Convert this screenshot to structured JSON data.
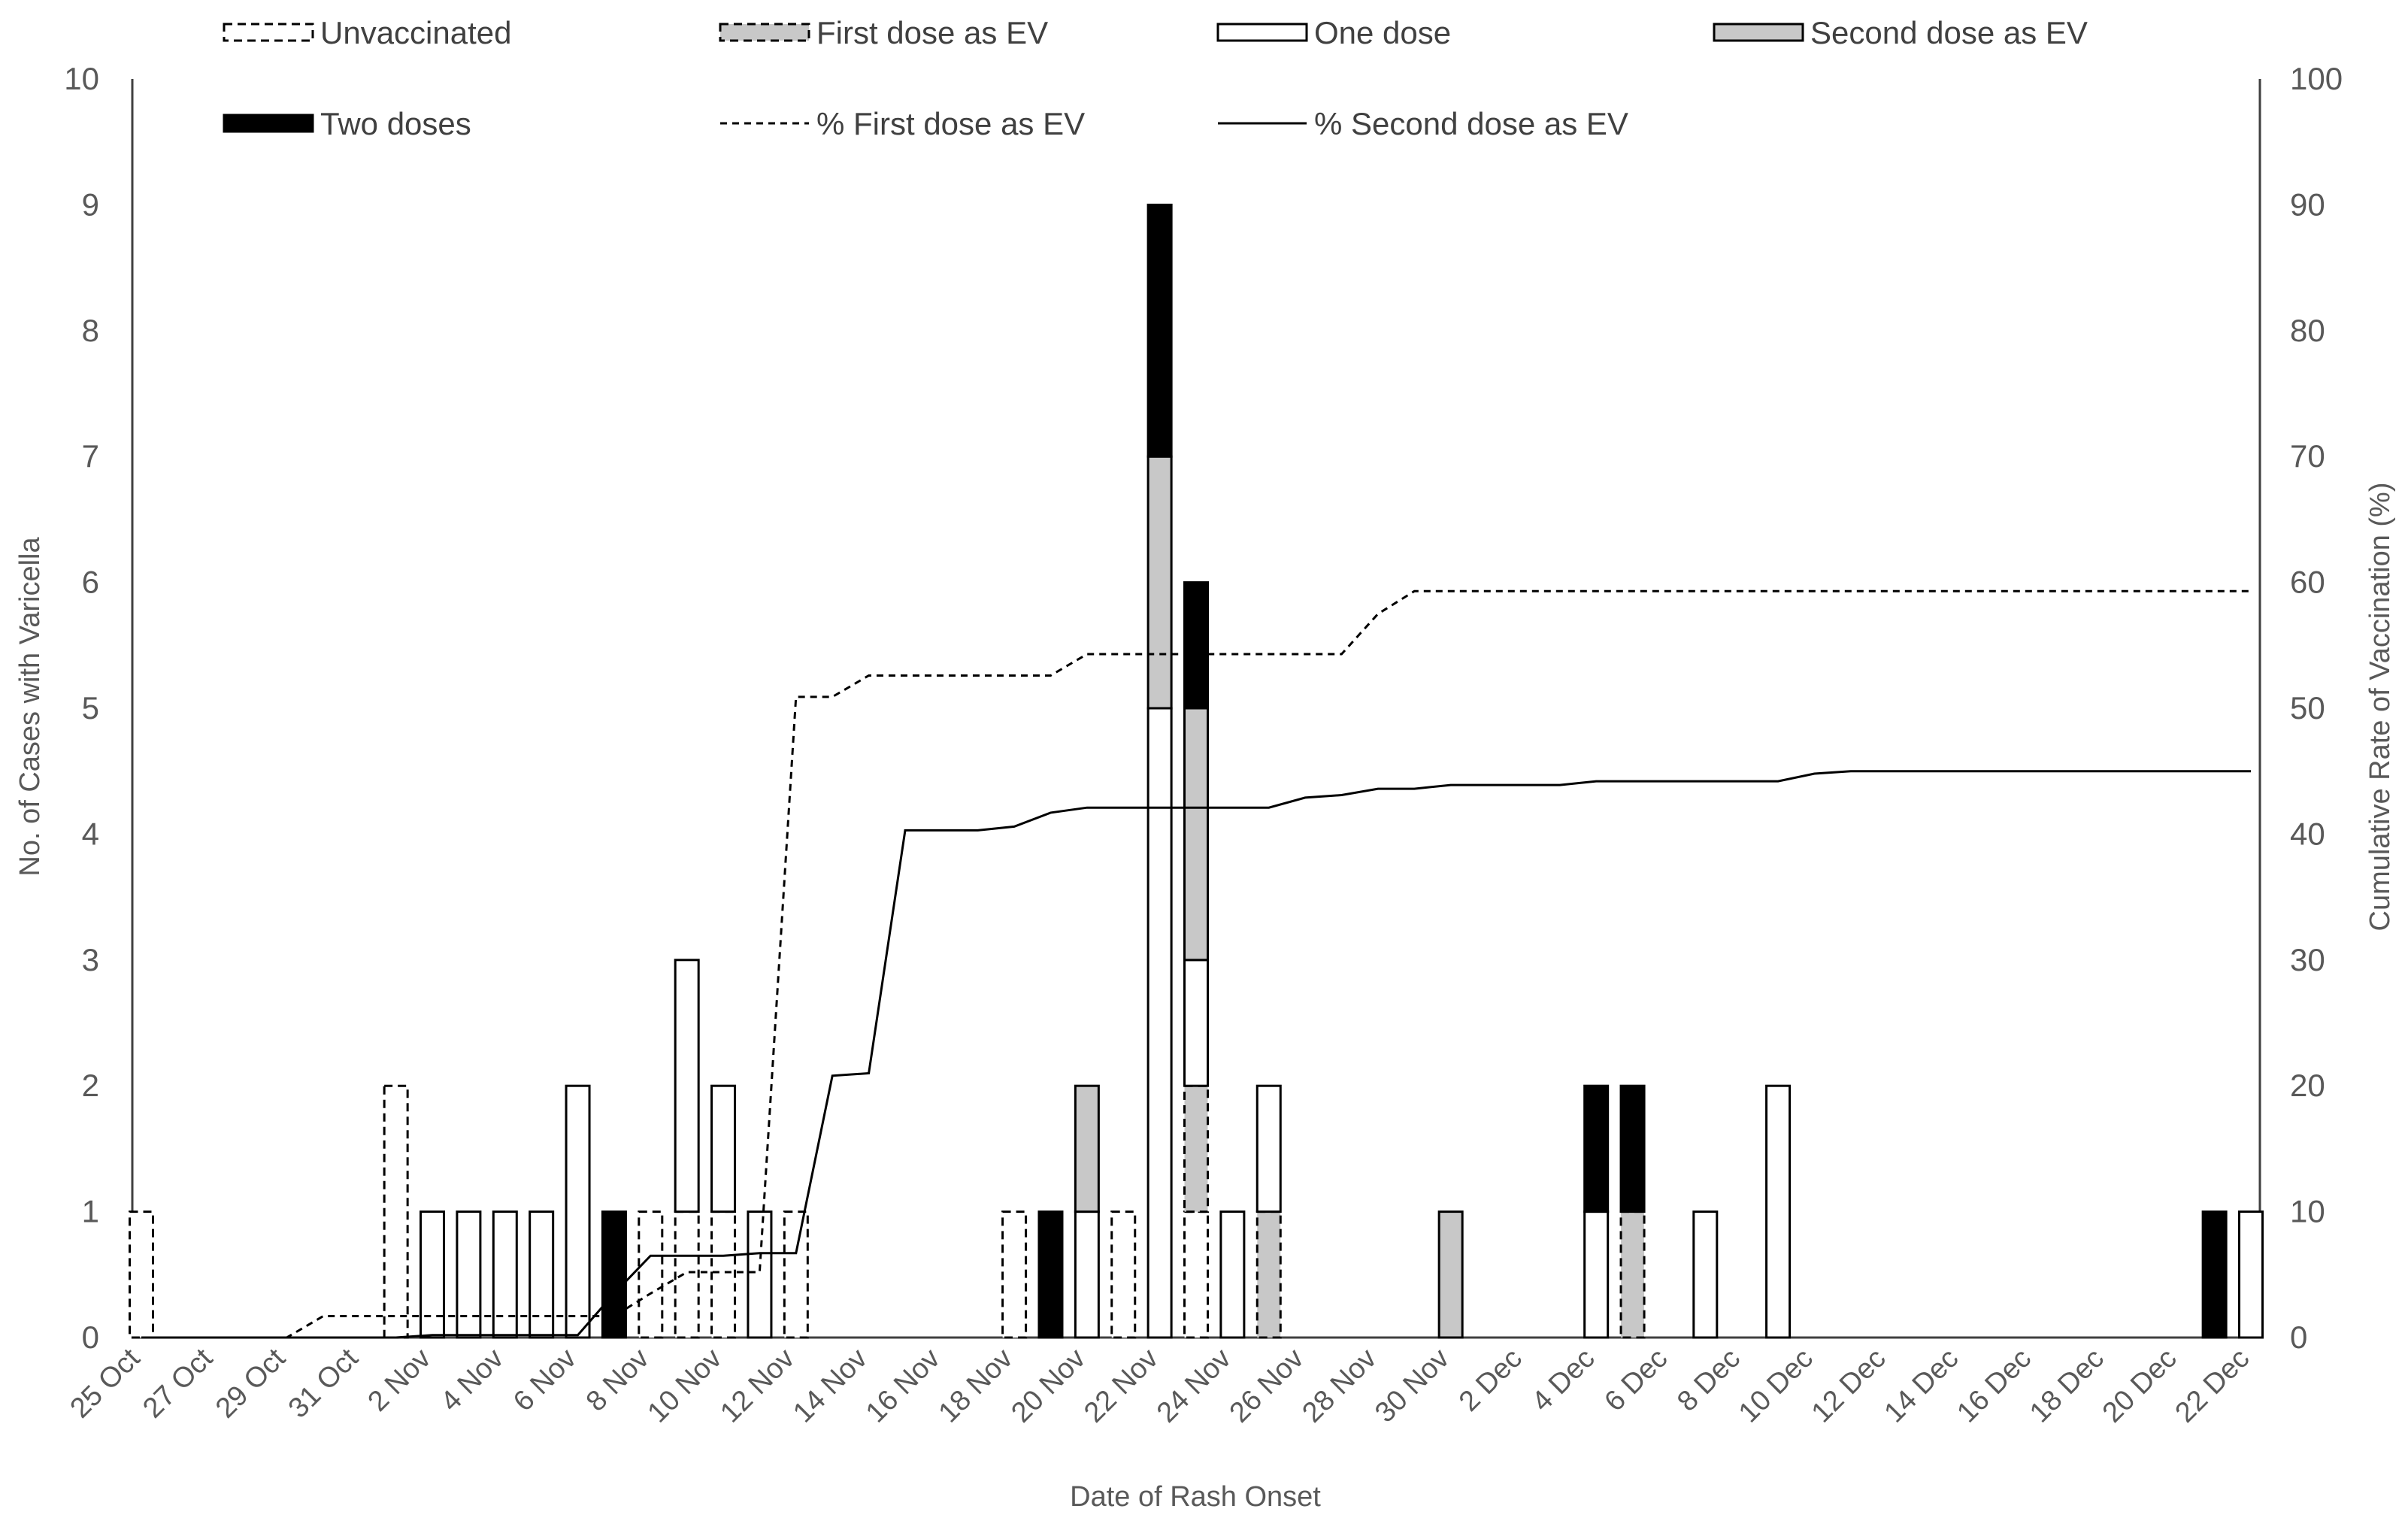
{
  "chart_data": {
    "type": "bar",
    "subtype": "stacked-bar-with-lines",
    "title": "",
    "xlabel": "Date of Rash Onset",
    "ylabel": "No. of Cases with Varicella",
    "y2label": "Cumulative Rate of Vaccination (%)",
    "ylim": [
      0,
      10
    ],
    "y2lim": [
      0,
      100
    ],
    "yticks": [
      "0",
      "1",
      "2",
      "3",
      "4",
      "5",
      "6",
      "7",
      "8",
      "9",
      "10"
    ],
    "y2ticks": [
      "0",
      "10",
      "20",
      "30",
      "40",
      "50",
      "60",
      "70",
      "80",
      "90",
      "100"
    ],
    "grid": false,
    "legend_position": "top",
    "x_tick_labels": [
      "25 Oct",
      "27 Oct",
      "29 Oct",
      "31 Oct",
      "2 Nov",
      "4 Nov",
      "6 Nov",
      "8 Nov",
      "10 Nov",
      "12 Nov",
      "14 Nov",
      "16 Nov",
      "18 Nov",
      "20 Nov",
      "22 Nov",
      "24 Nov",
      "26 Nov",
      "28 Nov",
      "30 Nov",
      "2 Dec",
      "4 Dec",
      "6 Dec",
      "8 Dec",
      "10 Dec",
      "12 Dec",
      "14 Dec",
      "16 Dec",
      "18 Dec",
      "20 Dec",
      "22 Dec"
    ],
    "categories": [
      "25 Oct",
      "26 Oct",
      "27 Oct",
      "28 Oct",
      "29 Oct",
      "30 Oct",
      "31 Oct",
      "1 Nov",
      "2 Nov",
      "3 Nov",
      "4 Nov",
      "5 Nov",
      "6 Nov",
      "7 Nov",
      "8 Nov",
      "9 Nov",
      "10 Nov",
      "11 Nov",
      "12 Nov",
      "13 Nov",
      "14 Nov",
      "15 Nov",
      "16 Nov",
      "17 Nov",
      "18 Nov",
      "19 Nov",
      "20 Nov",
      "21 Nov",
      "22 Nov",
      "23 Nov",
      "24 Nov",
      "25 Nov",
      "26 Nov",
      "27 Nov",
      "28 Nov",
      "29 Nov",
      "30 Nov",
      "1 Dec",
      "2 Dec",
      "3 Dec",
      "4 Dec",
      "5 Dec",
      "6 Dec",
      "7 Dec",
      "8 Dec",
      "9 Dec",
      "10 Dec",
      "11 Dec",
      "12 Dec",
      "13 Dec",
      "14 Dec",
      "15 Dec",
      "16 Dec",
      "17 Dec",
      "18 Dec",
      "19 Dec",
      "20 Dec",
      "21 Dec",
      "22 Dec"
    ],
    "series": [
      {
        "name": "Unvaccinated",
        "kind": "bar",
        "style": "dashed-outline",
        "values": [
          1,
          0,
          0,
          0,
          0,
          0,
          0,
          2,
          0,
          0,
          0,
          0,
          0,
          0,
          1,
          1,
          1,
          0,
          1,
          0,
          0,
          0,
          0,
          0,
          1,
          0,
          0,
          1,
          0,
          1,
          0,
          0,
          0,
          0,
          0,
          0,
          0,
          0,
          0,
          0,
          0,
          0,
          0,
          0,
          0,
          0,
          0,
          0,
          0,
          0,
          0,
          0,
          0,
          0,
          0,
          0,
          0,
          0,
          0
        ]
      },
      {
        "name": "First dose as EV",
        "kind": "bar",
        "style": "dashed-grey",
        "values": [
          0,
          0,
          0,
          0,
          0,
          0,
          0,
          0,
          0,
          0,
          0,
          0,
          0,
          0,
          0,
          0,
          0,
          0,
          0,
          0,
          0,
          0,
          0,
          0,
          0,
          0,
          0,
          0,
          0,
          1,
          0,
          1,
          0,
          0,
          0,
          0,
          0,
          0,
          0,
          0,
          0,
          1,
          0,
          0,
          0,
          0,
          0,
          0,
          0,
          0,
          0,
          0,
          0,
          0,
          0,
          0,
          0,
          0,
          0
        ]
      },
      {
        "name": "One dose",
        "kind": "bar",
        "style": "white",
        "values": [
          0,
          0,
          0,
          0,
          0,
          0,
          0,
          0,
          1,
          1,
          1,
          1,
          2,
          0,
          0,
          2,
          1,
          1,
          0,
          0,
          0,
          0,
          0,
          0,
          0,
          0,
          1,
          0,
          5,
          1,
          1,
          1,
          0,
          0,
          0,
          0,
          0,
          0,
          0,
          0,
          1,
          0,
          0,
          1,
          0,
          2,
          0,
          0,
          0,
          0,
          0,
          0,
          0,
          0,
          0,
          0,
          0,
          0,
          1
        ]
      },
      {
        "name": "Second dose as EV",
        "kind": "bar",
        "style": "grey",
        "values": [
          0,
          0,
          0,
          0,
          0,
          0,
          0,
          0,
          0,
          0,
          0,
          0,
          0,
          0,
          0,
          0,
          0,
          0,
          0,
          0,
          0,
          0,
          0,
          0,
          0,
          0,
          1,
          0,
          2,
          2,
          0,
          0,
          0,
          0,
          0,
          0,
          1,
          0,
          0,
          0,
          0,
          0,
          0,
          0,
          0,
          0,
          0,
          0,
          0,
          0,
          0,
          0,
          0,
          0,
          0,
          0,
          0,
          0,
          0
        ]
      },
      {
        "name": "Two doses",
        "kind": "bar",
        "style": "black",
        "values": [
          0,
          0,
          0,
          0,
          0,
          0,
          0,
          0,
          0,
          0,
          0,
          0,
          0,
          1,
          0,
          0,
          0,
          0,
          0,
          0,
          0,
          0,
          0,
          0,
          0,
          1,
          0,
          0,
          2,
          1,
          0,
          0,
          0,
          0,
          0,
          0,
          0,
          0,
          0,
          0,
          1,
          1,
          0,
          0,
          0,
          0,
          0,
          0,
          0,
          0,
          0,
          0,
          0,
          0,
          0,
          0,
          0,
          1,
          0
        ]
      },
      {
        "name": "% First dose as EV",
        "kind": "line",
        "style": "dashed",
        "axis": "y2",
        "x": [
          0,
          2,
          4,
          5,
          6,
          7,
          8,
          9,
          10,
          11,
          12,
          13,
          14,
          15,
          16,
          17,
          18,
          19,
          20,
          21,
          22,
          23,
          24,
          25,
          26,
          27,
          28,
          29,
          30,
          31,
          32,
          33,
          34,
          35,
          36,
          37,
          38,
          39,
          40,
          41,
          42,
          43,
          44,
          45,
          46,
          47,
          48,
          49,
          50,
          51,
          52,
          53,
          54,
          55,
          56,
          57,
          58
        ],
        "values": [
          0,
          0,
          0,
          1.7,
          1.7,
          1.7,
          1.7,
          1.7,
          1.7,
          1.7,
          1.7,
          1.7,
          3.5,
          5.2,
          5.2,
          5.2,
          50.9,
          50.9,
          52.6,
          52.6,
          52.6,
          52.6,
          52.6,
          52.6,
          54.3,
          54.3,
          54.3,
          54.3,
          54.3,
          54.3,
          54.3,
          54.3,
          57.5,
          59.3,
          59.3,
          59.3,
          59.3,
          59.3,
          59.3,
          59.3,
          59.3,
          59.3,
          59.3,
          59.3,
          59.3,
          59.3,
          59.3,
          59.3,
          59.3,
          59.3,
          59.3,
          59.3,
          59.3,
          59.3,
          59.3,
          59.3,
          59.3
        ]
      },
      {
        "name": "% Second dose as EV",
        "kind": "line",
        "style": "solid",
        "axis": "y2",
        "x": [
          0,
          2,
          4,
          6,
          7,
          8,
          9,
          10,
          11,
          12,
          13,
          14,
          15,
          16,
          17,
          18,
          19,
          20,
          21,
          22,
          23,
          24,
          25,
          26,
          27,
          28,
          29,
          30,
          31,
          32,
          33,
          34,
          35,
          36,
          37,
          38,
          39,
          40,
          41,
          42,
          43,
          44,
          45,
          46,
          47,
          48,
          49,
          50,
          51,
          52,
          53,
          54,
          55,
          56,
          57,
          58
        ],
        "values": [
          0,
          0,
          0,
          0,
          0,
          0.2,
          0.2,
          0.2,
          0.2,
          0.2,
          3.5,
          6.5,
          6.5,
          6.5,
          6.7,
          6.7,
          20.8,
          21.0,
          40.3,
          40.3,
          40.3,
          40.6,
          41.7,
          42.1,
          42.1,
          42.1,
          42.1,
          42.1,
          42.1,
          42.9,
          43.1,
          43.6,
          43.6,
          43.9,
          43.9,
          43.9,
          43.9,
          44.2,
          44.2,
          44.2,
          44.2,
          44.2,
          44.2,
          44.8,
          45.0,
          45.0,
          45.0,
          45.0,
          45.0,
          45.0,
          45.0,
          45.0,
          45.0,
          45.0,
          45.0,
          45.0
        ]
      }
    ]
  }
}
